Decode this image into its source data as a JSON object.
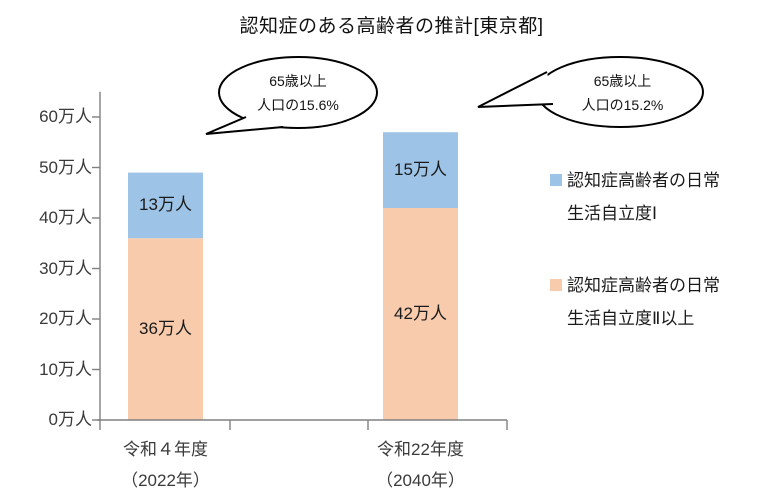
{
  "title": "認知症のある高齢者の推計[東京都]",
  "colors": {
    "series_blue": "#9DC3E6",
    "series_orange": "#F8CBAD",
    "axis": "#808080",
    "bubble_outline": "#000000"
  },
  "chart_data": {
    "type": "bar",
    "stacked": true,
    "title": "認知症のある高齢者の推計[東京都]",
    "unit": "万人",
    "categories": [
      {
        "line1": "令和４年度",
        "line2": "（2022年）"
      },
      {
        "line1": "令和22年度",
        "line2": "（2040年）"
      }
    ],
    "series": [
      {
        "name": "認知症高齢者の日常生活自立度Ⅰ",
        "color": "#9DC3E6",
        "values": [
          13,
          15
        ],
        "labels": [
          "13万人",
          "15万人"
        ]
      },
      {
        "name": "認知症高齢者の日常生活自立度Ⅱ以上",
        "color": "#F8CBAD",
        "values": [
          36,
          42
        ],
        "labels": [
          "36万人",
          "42万人"
        ]
      }
    ],
    "totals": [
      49,
      57
    ],
    "ylim": [
      0,
      65
    ],
    "y_tick_step": 10,
    "y_ticks": [
      {
        "value": 0,
        "label": "0万人"
      },
      {
        "value": 10,
        "label": "10万人"
      },
      {
        "value": 20,
        "label": "20万人"
      },
      {
        "value": 30,
        "label": "30万人"
      },
      {
        "value": 40,
        "label": "40万人"
      },
      {
        "value": 50,
        "label": "50万人"
      },
      {
        "value": 60,
        "label": "60万人"
      }
    ],
    "grid": false,
    "legend_position": "right",
    "annotations": [
      {
        "lines": [
          "65歳以上",
          "人口の15.6%"
        ]
      },
      {
        "lines": [
          "65歳以上",
          "人口の15.2%"
        ]
      }
    ]
  },
  "legend": {
    "items": [
      {
        "color": "#9DC3E6",
        "lines": [
          "認知症高齢者の日常",
          "生活自立度Ⅰ"
        ]
      },
      {
        "color": "#F8CBAD",
        "lines": [
          "認知症高齢者の日常",
          "生活自立度Ⅱ以上"
        ]
      }
    ]
  }
}
